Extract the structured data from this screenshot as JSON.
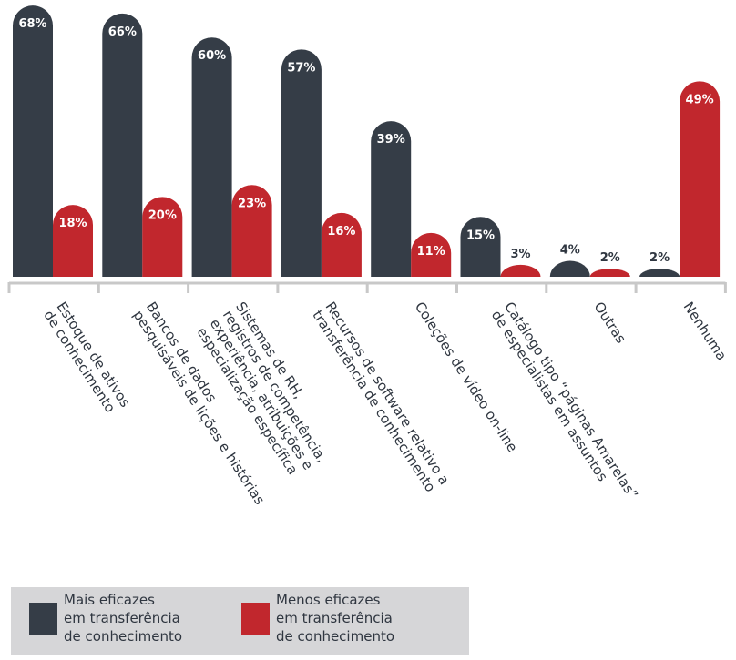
{
  "chart_data": {
    "type": "bar",
    "categories": [
      "Estoque de ativos\nde conhecimento",
      "Bancos de dados\npesquisáveis de lições e histórias",
      "Sistemas de RH,\nregistros de competência,\nexperiência, atribuições e\nespecialização específica",
      "Recursos de software relativo a\ntransferência de conhecimento",
      "Coleções de vídeo on-line",
      "Catálogo tipo “páginas Amarelas”\nde especialistas em assuntos",
      "Outras",
      "Nenhuma"
    ],
    "series": [
      {
        "name": "Mais eficazes\nem transferência\nde conhecimento",
        "color": "#353d47",
        "values": [
          68,
          66,
          60,
          57,
          39,
          15,
          4,
          2
        ],
        "value_labels": [
          "68%",
          "66%",
          "60%",
          "57%",
          "39%",
          "15%",
          "4%",
          "2%"
        ]
      },
      {
        "name": "Menos eficazes\nem transferência\nde conhecimento",
        "color": "#c1272d",
        "values": [
          18,
          20,
          23,
          16,
          11,
          3,
          2,
          49
        ],
        "value_labels": [
          "18%",
          "20%",
          "23%",
          "16%",
          "11%",
          "3%",
          "2%",
          "49%"
        ]
      }
    ]
  }
}
